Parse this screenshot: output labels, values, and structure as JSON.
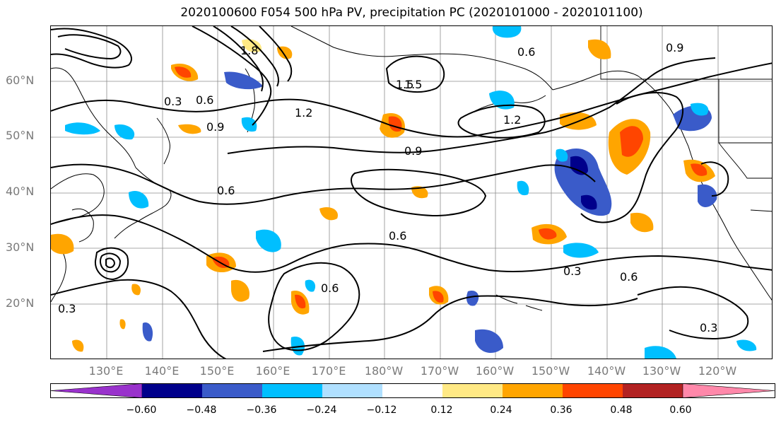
{
  "title": "2020100600 F054 500 hPa PV, precipitation PC (2020101000 - 2020101100)",
  "latitude_labels": [
    "60°N",
    "50°N",
    "40°N",
    "30°N",
    "20°N"
  ],
  "longitude_labels": [
    "130°E",
    "140°E",
    "150°E",
    "160°E",
    "170°E",
    "180°W",
    "170°W",
    "160°W",
    "150°W",
    "140°W",
    "130°W",
    "120°W"
  ],
  "pv_contour_labels": [
    "0.3",
    "0.6",
    "0.9",
    "1.2",
    "1.5",
    "1.8",
    "1.2",
    "0.6",
    "0.9",
    "0.6",
    "1.5",
    "0.6",
    "0.9",
    "0.3",
    "0.6",
    "0.3",
    "0.6",
    "0.3"
  ],
  "colorbar": {
    "tick_labels": [
      "−0.60",
      "−0.48",
      "−0.36",
      "−0.24",
      "−0.12",
      "0.12",
      "0.24",
      "0.36",
      "0.48",
      "0.60"
    ],
    "colors": [
      "#9932cc",
      "#00008b",
      "#3a5bc9",
      "#00bfff",
      "#b0e0ff",
      "#ffffff",
      "#ffe985",
      "#ffa500",
      "#ff4500",
      "#b22222",
      "#ff88aa"
    ]
  }
}
